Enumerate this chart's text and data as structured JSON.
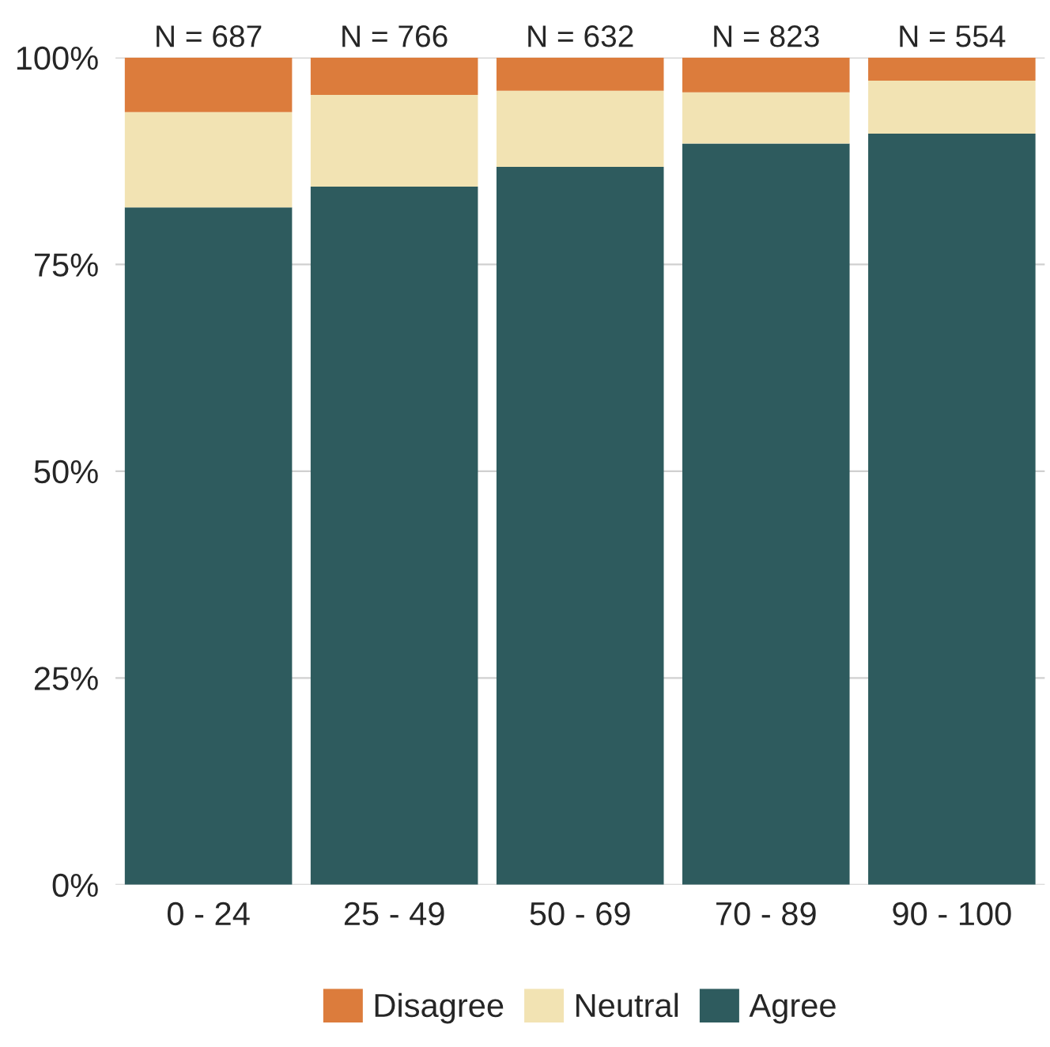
{
  "chart_data": {
    "type": "bar",
    "stacked": true,
    "categories": [
      "0 - 24",
      "25 - 49",
      "50 - 69",
      "70 - 89",
      "90 - 100"
    ],
    "series": [
      {
        "name": "Agree",
        "color": "#2e5b5e",
        "values": [
          81.9,
          84.4,
          86.8,
          89.6,
          90.8
        ]
      },
      {
        "name": "Neutral",
        "color": "#f2e3b3",
        "values": [
          11.5,
          11.1,
          9.2,
          6.2,
          6.4
        ]
      },
      {
        "name": "Disagree",
        "color": "#dc7c3c",
        "values": [
          6.6,
          4.5,
          4.0,
          4.2,
          2.8
        ]
      }
    ],
    "ylim": [
      0,
      100
    ],
    "yticks": [
      {
        "value": 0,
        "label": "0%"
      },
      {
        "value": 25,
        "label": "25%"
      },
      {
        "value": 50,
        "label": "50%"
      },
      {
        "value": 75,
        "label": "75%"
      },
      {
        "value": 100,
        "label": "100%"
      }
    ],
    "grid": "y",
    "legend": "bottom",
    "annotations": [
      {
        "text": "N = 687",
        "x": "0 - 24",
        "y": 100
      },
      {
        "text": "N = 766",
        "x": "25 - 49",
        "y": 100
      },
      {
        "text": "N = 632",
        "x": "50 - 69",
        "y": 100
      },
      {
        "text": "N = 823",
        "x": "70 - 89",
        "y": 100
      },
      {
        "text": "N = 554",
        "x": "90 - 100",
        "y": 100
      }
    ]
  }
}
